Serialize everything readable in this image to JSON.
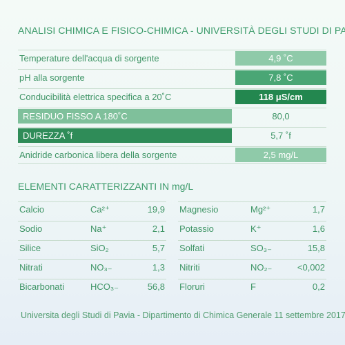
{
  "title": "ANALISI CHIMICA E FISICO-CHIMICA - UNIVERSITÀ DEGLI STUDI DI PAVIA",
  "analysis": [
    {
      "label": "Temperature dell'acqua di sorgente",
      "value": "4,9 ˚C",
      "style": "light"
    },
    {
      "label": "pH alla sorgente",
      "value": "7,8 ˚C",
      "style": "mid"
    },
    {
      "label": "Conducibilità elettrica specifica a 20˚C",
      "value": "118 μS/cm",
      "style": "dark"
    },
    {
      "label": "RESIDUO FISSO A 180˚C",
      "value": "80,0",
      "style": "plain",
      "box": "light"
    },
    {
      "label": "DUREZZA ˚f",
      "value": "5,7 ˚f",
      "style": "plain",
      "box": "dark"
    },
    {
      "label": "Anidride carbonica libera della sorgente",
      "value": "2,5 mg/L",
      "style": "light"
    }
  ],
  "elements_title": "ELEMENTI CARATTERIZZANTI IN mg/L",
  "elements_left": [
    {
      "name": "Calcio",
      "formula": "Ca²⁺",
      "value": "19,9"
    },
    {
      "name": "Sodio",
      "formula": "Na⁺",
      "value": "2,1"
    },
    {
      "name": "Silice",
      "formula": "SiO₂",
      "value": "5,7"
    },
    {
      "name": "Nitrati",
      "formula": "NO₃₋",
      "value": "1,3"
    },
    {
      "name": "Bicarbonati",
      "formula": "HCO₃₋",
      "value": "56,8"
    }
  ],
  "elements_right": [
    {
      "name": "Magnesio",
      "formula": "Mg²⁺",
      "value": "1,7"
    },
    {
      "name": "Potassio",
      "formula": "K⁺",
      "value": "1,6"
    },
    {
      "name": "Solfati",
      "formula": "SO₃₋",
      "value": "15,8"
    },
    {
      "name": "Nitriti",
      "formula": "NO₂₋",
      "value": "<0,002"
    },
    {
      "name": "Floruri",
      "formula": "F",
      "value": "0,2"
    }
  ],
  "footer": "Universita degli Studi di Pavia - Dipartimento di Chimica Generale 11 settembre 2017",
  "colors": {
    "light": "#8fcaa9",
    "mid": "#4aa675",
    "dark": "#23874f",
    "text": "#3f9566"
  }
}
